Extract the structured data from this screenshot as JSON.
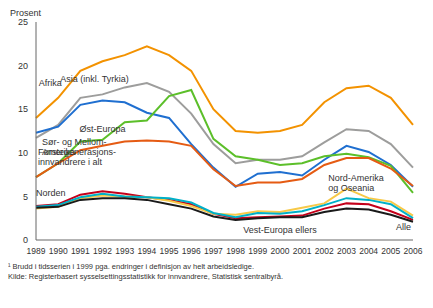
{
  "chart_data": {
    "type": "line",
    "y_label": "Prosent",
    "footnote": "¹ Brudd i tidsserien i 1999 pga. endringer i definisjon av helt arbeidsledige.",
    "source": "Kilde: Registerbasert sysselsettingsstatistikk for innvandrere, Statistisk sentralbyrå.",
    "categories": [
      "1989",
      "1990",
      "1991",
      "1992",
      "1993",
      "1994",
      "1995",
      "1996",
      "1997",
      "1998",
      "1999",
      "2000",
      "2001",
      "2002",
      "2003",
      "2004",
      "2005",
      "2006"
    ],
    "ylim": [
      0,
      25
    ],
    "yticks": [
      0,
      5,
      10,
      15,
      20,
      25
    ],
    "grid": false,
    "series": [
      {
        "name": "Afrika",
        "color": "#f39200",
        "values": [
          14,
          16.3,
          19.4,
          20.5,
          21.2,
          22.2,
          21.2,
          19.4,
          15,
          12.5,
          12.3,
          12.5,
          13.2,
          15.8,
          17.4,
          17.7,
          16.3,
          13.2
        ]
      },
      {
        "name": "Asia (inkl. Tyrkia)",
        "color": "#9d9d9c",
        "values": [
          11.7,
          13.2,
          16.3,
          16.7,
          17.5,
          18,
          17,
          14.5,
          11,
          8.8,
          9.2,
          9.2,
          9.6,
          11.2,
          12.7,
          12.5,
          11,
          8.3
        ]
      },
      {
        "name": "Sør- og Mellom-Amerika",
        "color": "#1f6fd0",
        "values": [
          12.3,
          13,
          15.5,
          16,
          15.8,
          14.6,
          14,
          11,
          8.3,
          6.1,
          7.6,
          7.8,
          7.4,
          9.2,
          10.8,
          10.1,
          8.6,
          6.1
        ]
      },
      {
        "name": "Øst-Europa",
        "color": "#5cbf2a",
        "values": [
          7.2,
          8.8,
          11.3,
          11.5,
          13.5,
          13.7,
          16.5,
          17.2,
          11.6,
          9.6,
          9.2,
          8.6,
          8.8,
          9.6,
          9.9,
          9.5,
          8.5,
          5.4
        ]
      },
      {
        "name": "Førstegenerasjons-innvandrere i alt",
        "color": "#e55b13",
        "values": [
          7.2,
          8.8,
          10.3,
          10.8,
          11.3,
          11.4,
          11.3,
          10.8,
          8.1,
          6.2,
          6.6,
          6.6,
          7,
          8.6,
          9.4,
          9.4,
          8.2,
          6.2
        ]
      },
      {
        "name": "Norden",
        "color": "#c4001a",
        "values": [
          3.9,
          4.1,
          5.2,
          5.6,
          5.3,
          4.9,
          4.6,
          4.1,
          3.0,
          2.5,
          2.6,
          2.7,
          2.8,
          3.6,
          4.2,
          4.1,
          3.3,
          2.3
        ]
      },
      {
        "name": "Nord-Amerika og Oseania",
        "color": "#f7c948",
        "values": [
          3.6,
          3.8,
          4.8,
          5.1,
          5.0,
          4.9,
          4.5,
          3.9,
          3.0,
          2.9,
          3.3,
          3.2,
          3.7,
          4.2,
          5.9,
          4.8,
          4.4,
          2.8
        ]
      },
      {
        "name": "Alle",
        "color": "#00b0c8",
        "values": [
          3.8,
          4.0,
          4.9,
          5.3,
          5.0,
          4.9,
          4.8,
          4.3,
          3.1,
          2.6,
          3.1,
          3.0,
          3.3,
          4.0,
          4.8,
          4.6,
          4.1,
          2.5
        ]
      },
      {
        "name": "Vest-Europa ellers",
        "color": "#1a1a1a",
        "values": [
          3.7,
          3.8,
          4.6,
          4.8,
          4.8,
          4.6,
          4.1,
          3.6,
          2.7,
          2.3,
          2.5,
          2.6,
          2.6,
          3.2,
          3.6,
          3.5,
          2.9,
          2.1
        ]
      }
    ]
  }
}
